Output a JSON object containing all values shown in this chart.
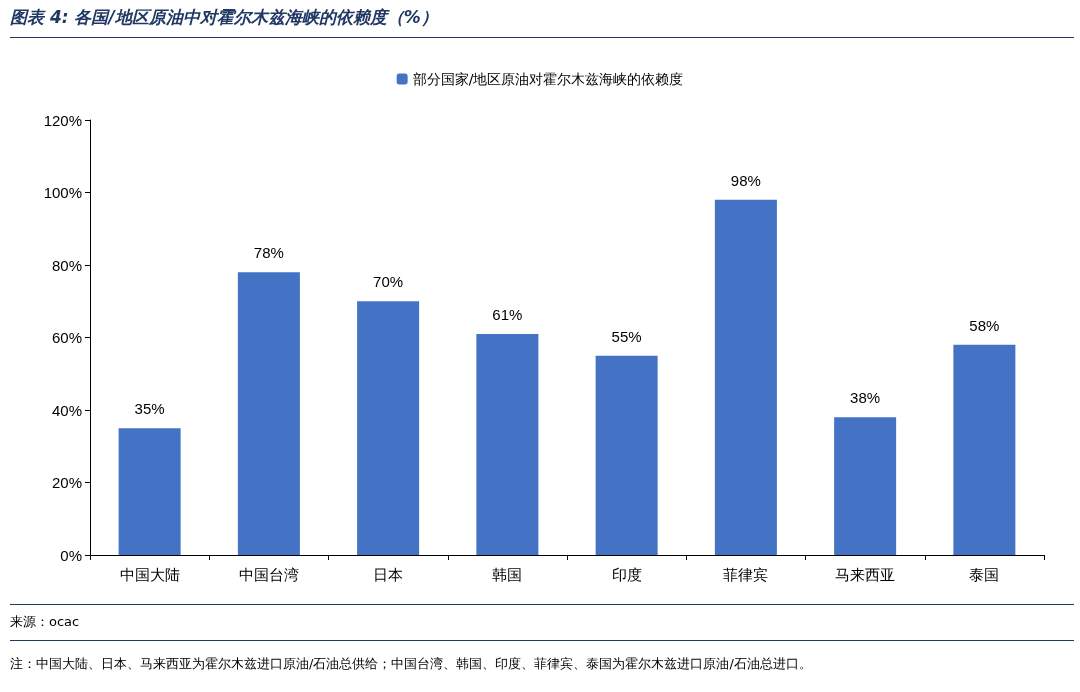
{
  "chart_data": {
    "type": "bar",
    "title": "图表 4: 各国/地区原油中对霍尔木兹海峡的依赖度（%）",
    "categories": [
      "中国大陆",
      "中国台湾",
      "日本",
      "韩国",
      "印度",
      "菲律宾",
      "马来西亚",
      "泰国"
    ],
    "series": [
      {
        "name": "部分国家/地区原油对霍尔木兹海峡的依赖度",
        "color": "#4472c4",
        "values": [
          35,
          78,
          70,
          61,
          55,
          98,
          38,
          58
        ],
        "value_labels": [
          "35%",
          "78%",
          "70%",
          "61%",
          "55%",
          "98%",
          "38%",
          "58%"
        ]
      }
    ],
    "ylim": [
      0,
      120
    ],
    "yticks": [
      {
        "value": 0,
        "label": "0%"
      },
      {
        "value": 20,
        "label": "20%"
      },
      {
        "value": 40,
        "label": "40%"
      },
      {
        "value": 60,
        "label": "60%"
      },
      {
        "value": 80,
        "label": "80%"
      },
      {
        "value": 100,
        "label": "100%"
      },
      {
        "value": 120,
        "label": "120%"
      }
    ],
    "grid": false,
    "legend": "top",
    "annotations": [
      "来源：ocac",
      "注：中国大陆、日本、马来西亚为霍尔木兹进口原油/石油总供给；中国台湾、韩国、印度、菲律宾、泰国为霍尔木兹进口原油/石油总进口。"
    ]
  }
}
